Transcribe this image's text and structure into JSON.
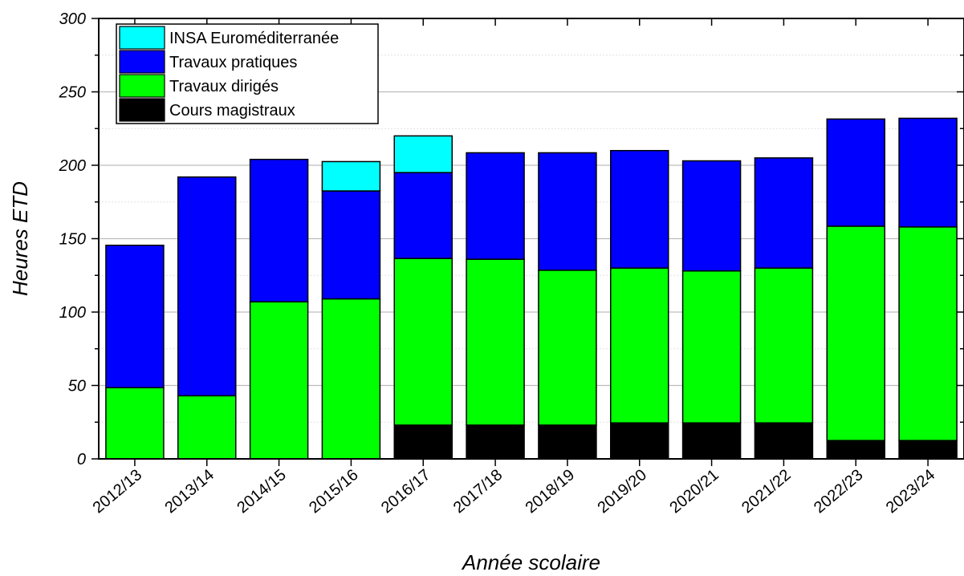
{
  "chart_data": {
    "type": "bar",
    "stacked": true,
    "title": "",
    "xlabel": "Année scolaire",
    "ylabel": "Heures ETD",
    "ylim": [
      0,
      300
    ],
    "yticks": [
      0,
      50,
      100,
      150,
      200,
      250,
      300
    ],
    "grid": true,
    "legend_position": "top-left",
    "categories": [
      "2012/13",
      "2013/14",
      "2014/15",
      "2015/16",
      "2016/17",
      "2017/18",
      "2018/19",
      "2019/20",
      "2020/21",
      "2021/22",
      "2022/23",
      "2023/24"
    ],
    "series": [
      {
        "name": "Cours magistraux",
        "color": "#000000",
        "values": [
          0,
          0,
          0,
          0,
          23,
          23,
          23,
          24.5,
          24.5,
          24.5,
          12.5,
          12.5
        ]
      },
      {
        "name": "Travaux dirigés",
        "color": "#00ff00",
        "values": [
          48.5,
          43,
          107,
          109,
          113.5,
          113,
          105.5,
          105.5,
          103.5,
          105.5,
          146,
          145.5
        ]
      },
      {
        "name": "Travaux pratiques",
        "color": "#0000ff",
        "values": [
          97,
          149,
          97,
          73.5,
          58.5,
          72.5,
          80,
          80,
          75,
          75,
          73,
          74
        ]
      },
      {
        "name": "INSA Euroméditerranée",
        "color": "#00ffff",
        "values": [
          0,
          0,
          0,
          20,
          25,
          0,
          0,
          0,
          0,
          0,
          0,
          0
        ]
      }
    ],
    "legend_order": [
      "INSA Euroméditerranée",
      "Travaux pratiques",
      "Travaux dirigés",
      "Cours magistraux"
    ]
  }
}
